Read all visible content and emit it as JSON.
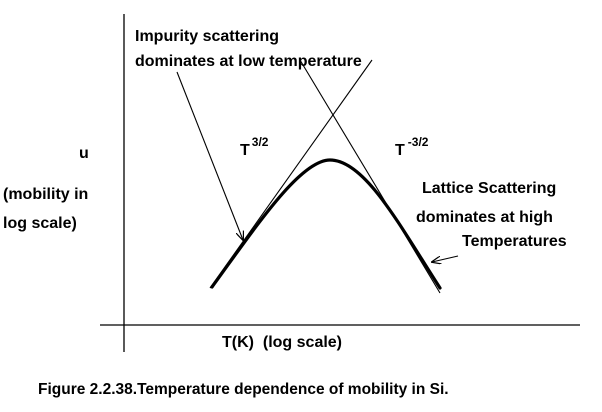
{
  "diagram": {
    "y_axis_symbol": "u",
    "y_axis_desc_line1": "(mobility in",
    "y_axis_desc_line2": "log scale)",
    "x_axis_label": "T(K)  (log scale)",
    "impurity_note_line1": "Impurity scattering",
    "impurity_note_line2": "dominates at low temperature",
    "lattice_note_line1": "Lattice Scattering",
    "lattice_note_line2": "dominates at high",
    "lattice_note_line3": "Temperatures",
    "left_slope_base": "T",
    "left_slope_exp": "3/2",
    "right_slope_base": "T",
    "right_slope_exp": "-3/2",
    "caption": "Figure 2.2.38.Temperature dependence of mobility in Si."
  }
}
